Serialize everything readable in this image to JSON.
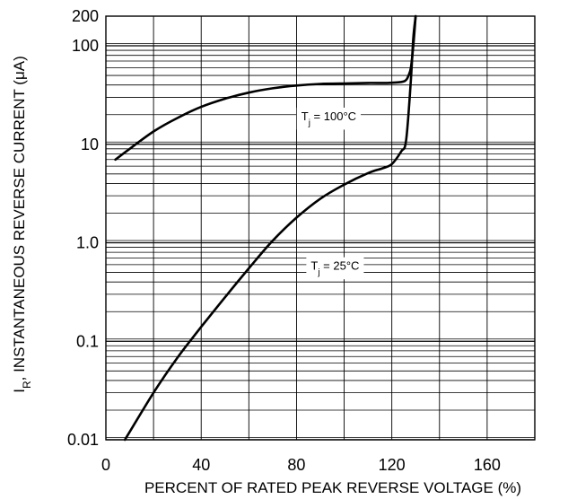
{
  "chart_data": {
    "type": "line",
    "title": "",
    "xlabel": "PERCENT OF RATED PEAK REVERSE VOLTAGE (%)",
    "ylabel_main": "I",
    "ylabel_sub": "R",
    "ylabel_rest": ", INSTANTANEOUS REVERSE CURRENT (μA)",
    "xlim": [
      0,
      180
    ],
    "ylim": [
      0.01,
      200
    ],
    "yscale": "log",
    "grid": true,
    "x_ticks": [
      0,
      40,
      80,
      120,
      160
    ],
    "x_tick_labels": [
      "0",
      "40",
      "80",
      "120",
      "160"
    ],
    "y_ticks": [
      0.01,
      0.1,
      1,
      10,
      100,
      200
    ],
    "y_tick_labels": [
      "0.01",
      "0.1",
      "1.0",
      "10",
      "100",
      "200"
    ],
    "series": [
      {
        "name_prefix": "T",
        "name_sub": "j",
        "name_suffix": " = 100°C",
        "x": [
          4,
          10,
          20,
          30,
          40,
          50,
          60,
          70,
          80,
          90,
          100,
          110,
          118,
          124,
          126,
          127,
          128,
          129,
          130
        ],
        "y": [
          7,
          9,
          13.5,
          18.5,
          24,
          29,
          33.5,
          37,
          39.5,
          41,
          41.5,
          42,
          42,
          43,
          45,
          50,
          60,
          100,
          200
        ]
      },
      {
        "name_prefix": "T",
        "name_sub": "j",
        "name_suffix": " = 25°C",
        "x": [
          8,
          20,
          30,
          40,
          50,
          60,
          70,
          80,
          90,
          100,
          110,
          116,
          120,
          124,
          126,
          128,
          129,
          130
        ],
        "y": [
          0.01,
          0.03,
          0.068,
          0.14,
          0.28,
          0.55,
          1.05,
          1.8,
          2.8,
          3.9,
          5.1,
          5.7,
          6.3,
          8.5,
          11,
          45,
          120,
          200
        ]
      }
    ]
  }
}
